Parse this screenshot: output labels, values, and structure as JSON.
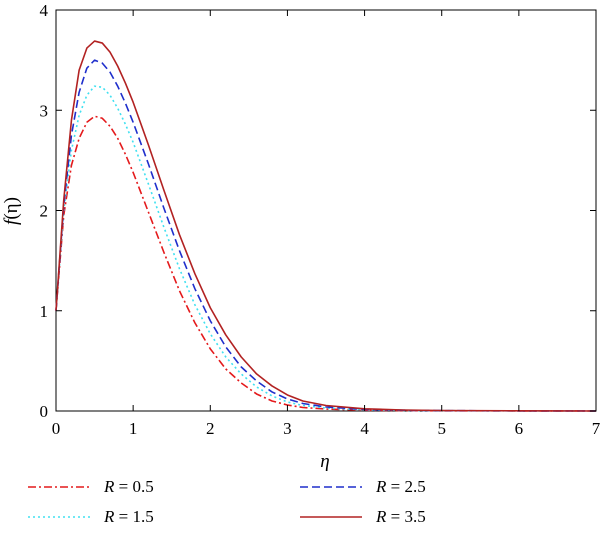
{
  "chart_data": {
    "type": "line",
    "xlabel": "η",
    "ylabel_main": "f",
    "ylabel_arg": "(η)",
    "xlim": [
      0,
      7
    ],
    "ylim": [
      0,
      4
    ],
    "x_ticks": [
      "0",
      "1",
      "2",
      "3",
      "4",
      "5",
      "6",
      "7"
    ],
    "y_ticks": [
      "0",
      "1",
      "2",
      "3",
      "4"
    ],
    "grid": false,
    "legend_position": "bottom",
    "legend_var": "R",
    "series": [
      {
        "name": "R = 0.5",
        "value_label": "= 0.5",
        "color": "#e41a1c",
        "dash": "dashdot",
        "x": [
          0,
          0.1,
          0.2,
          0.3,
          0.4,
          0.5,
          0.6,
          0.7,
          0.8,
          0.9,
          1.0,
          1.2,
          1.4,
          1.6,
          1.8,
          2.0,
          2.2,
          2.4,
          2.6,
          2.8,
          3.0,
          3.2,
          3.5,
          4.0,
          4.5,
          5.0,
          6.0,
          7.0
        ],
        "values": [
          1.0,
          1.95,
          2.45,
          2.72,
          2.88,
          2.94,
          2.92,
          2.84,
          2.72,
          2.56,
          2.38,
          1.98,
          1.58,
          1.2,
          0.88,
          0.62,
          0.42,
          0.28,
          0.17,
          0.1,
          0.06,
          0.035,
          0.02,
          0.008,
          0.004,
          0.002,
          0.001,
          0.0
        ]
      },
      {
        "name": "R = 1.5",
        "value_label": "= 1.5",
        "color": "#40e0f0",
        "dash": "dotted",
        "x": [
          0,
          0.1,
          0.2,
          0.3,
          0.4,
          0.5,
          0.6,
          0.7,
          0.8,
          0.9,
          1.0,
          1.2,
          1.4,
          1.6,
          1.8,
          2.0,
          2.2,
          2.4,
          2.6,
          2.8,
          3.0,
          3.2,
          3.5,
          4.0,
          4.5,
          5.0,
          6.0,
          7.0
        ],
        "values": [
          1.0,
          2.0,
          2.6,
          2.95,
          3.15,
          3.24,
          3.23,
          3.15,
          3.02,
          2.86,
          2.68,
          2.26,
          1.83,
          1.42,
          1.06,
          0.77,
          0.54,
          0.37,
          0.24,
          0.15,
          0.09,
          0.055,
          0.03,
          0.012,
          0.006,
          0.003,
          0.001,
          0.0
        ]
      },
      {
        "name": "R = 2.5",
        "value_label": "= 2.5",
        "color": "#1f2fcc",
        "dash": "dashed",
        "x": [
          0,
          0.1,
          0.2,
          0.3,
          0.4,
          0.5,
          0.6,
          0.7,
          0.8,
          0.9,
          1.0,
          1.2,
          1.4,
          1.6,
          1.8,
          2.0,
          2.2,
          2.4,
          2.6,
          2.8,
          3.0,
          3.2,
          3.5,
          4.0,
          4.5,
          5.0,
          6.0,
          7.0
        ],
        "values": [
          1.0,
          2.05,
          2.75,
          3.18,
          3.42,
          3.5,
          3.47,
          3.38,
          3.24,
          3.07,
          2.88,
          2.46,
          2.02,
          1.6,
          1.22,
          0.9,
          0.64,
          0.44,
          0.3,
          0.19,
          0.12,
          0.075,
          0.04,
          0.016,
          0.008,
          0.004,
          0.001,
          0.0
        ]
      },
      {
        "name": "R = 3.5",
        "value_label": "= 3.5",
        "color": "#b22222",
        "dash": "solid",
        "x": [
          0,
          0.1,
          0.2,
          0.3,
          0.4,
          0.5,
          0.6,
          0.7,
          0.8,
          0.9,
          1.0,
          1.2,
          1.4,
          1.6,
          1.8,
          2.0,
          2.2,
          2.4,
          2.6,
          2.8,
          3.0,
          3.2,
          3.5,
          4.0,
          4.5,
          5.0,
          6.0,
          7.0
        ],
        "values": [
          1.0,
          2.1,
          2.9,
          3.4,
          3.62,
          3.69,
          3.67,
          3.58,
          3.44,
          3.27,
          3.08,
          2.65,
          2.2,
          1.76,
          1.37,
          1.03,
          0.76,
          0.54,
          0.37,
          0.25,
          0.16,
          0.1,
          0.055,
          0.022,
          0.01,
          0.005,
          0.002,
          0.0
        ]
      }
    ]
  }
}
